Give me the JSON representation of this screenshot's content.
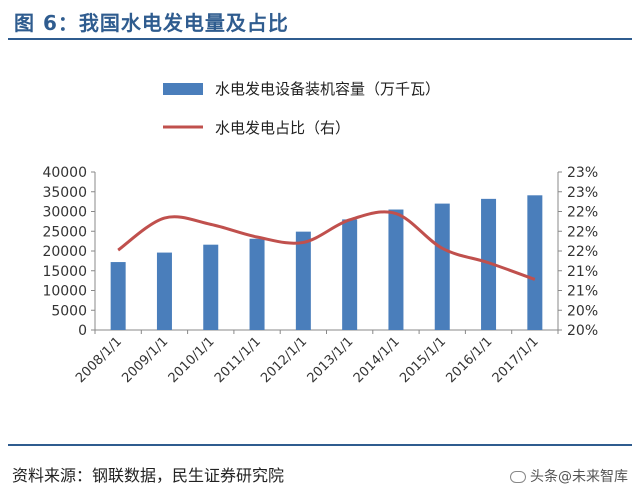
{
  "header": {
    "title": "图 6：我国水电发电量及占比"
  },
  "footer": {
    "source": "资料来源：钢联数据，民生证券研究院",
    "watermark": "头条@未来智库"
  },
  "colors": {
    "bar": "#4a7ebb",
    "line": "#c0504d",
    "accent": "#2f5c8f",
    "axis": "#888888"
  },
  "chart_data": {
    "type": "bar+line",
    "categories": [
      "2008/1/1",
      "2009/1/1",
      "2010/1/1",
      "2011/1/1",
      "2012/1/1",
      "2013/1/1",
      "2014/1/1",
      "2015/1/1",
      "2016/1/1",
      "2017/1/1"
    ],
    "series": [
      {
        "name": "水电发电设备装机容量（万千瓦）",
        "type": "bar",
        "axis": "left",
        "values": [
          17200,
          19600,
          21600,
          23100,
          24900,
          28000,
          30500,
          32000,
          33200,
          34100
        ]
      },
      {
        "name": "水电发电占比（右）",
        "type": "line",
        "axis": "right",
        "values": [
          21.77,
          22.48,
          22.34,
          22.06,
          21.94,
          22.44,
          22.58,
          21.81,
          21.49,
          21.12
        ]
      }
    ],
    "y_left": {
      "ylim": [
        0,
        40000
      ],
      "ticks": [
        "0",
        "5000",
        "10000",
        "15000",
        "20000",
        "25000",
        "30000",
        "35000",
        "40000"
      ]
    },
    "y_right": {
      "ylim": [
        20,
        23.5
      ],
      "ticks": [
        "20%",
        "20%",
        "21%",
        "21%",
        "22%",
        "22%",
        "22%",
        "23%",
        "23%"
      ]
    },
    "legend": {
      "position": "top"
    }
  }
}
